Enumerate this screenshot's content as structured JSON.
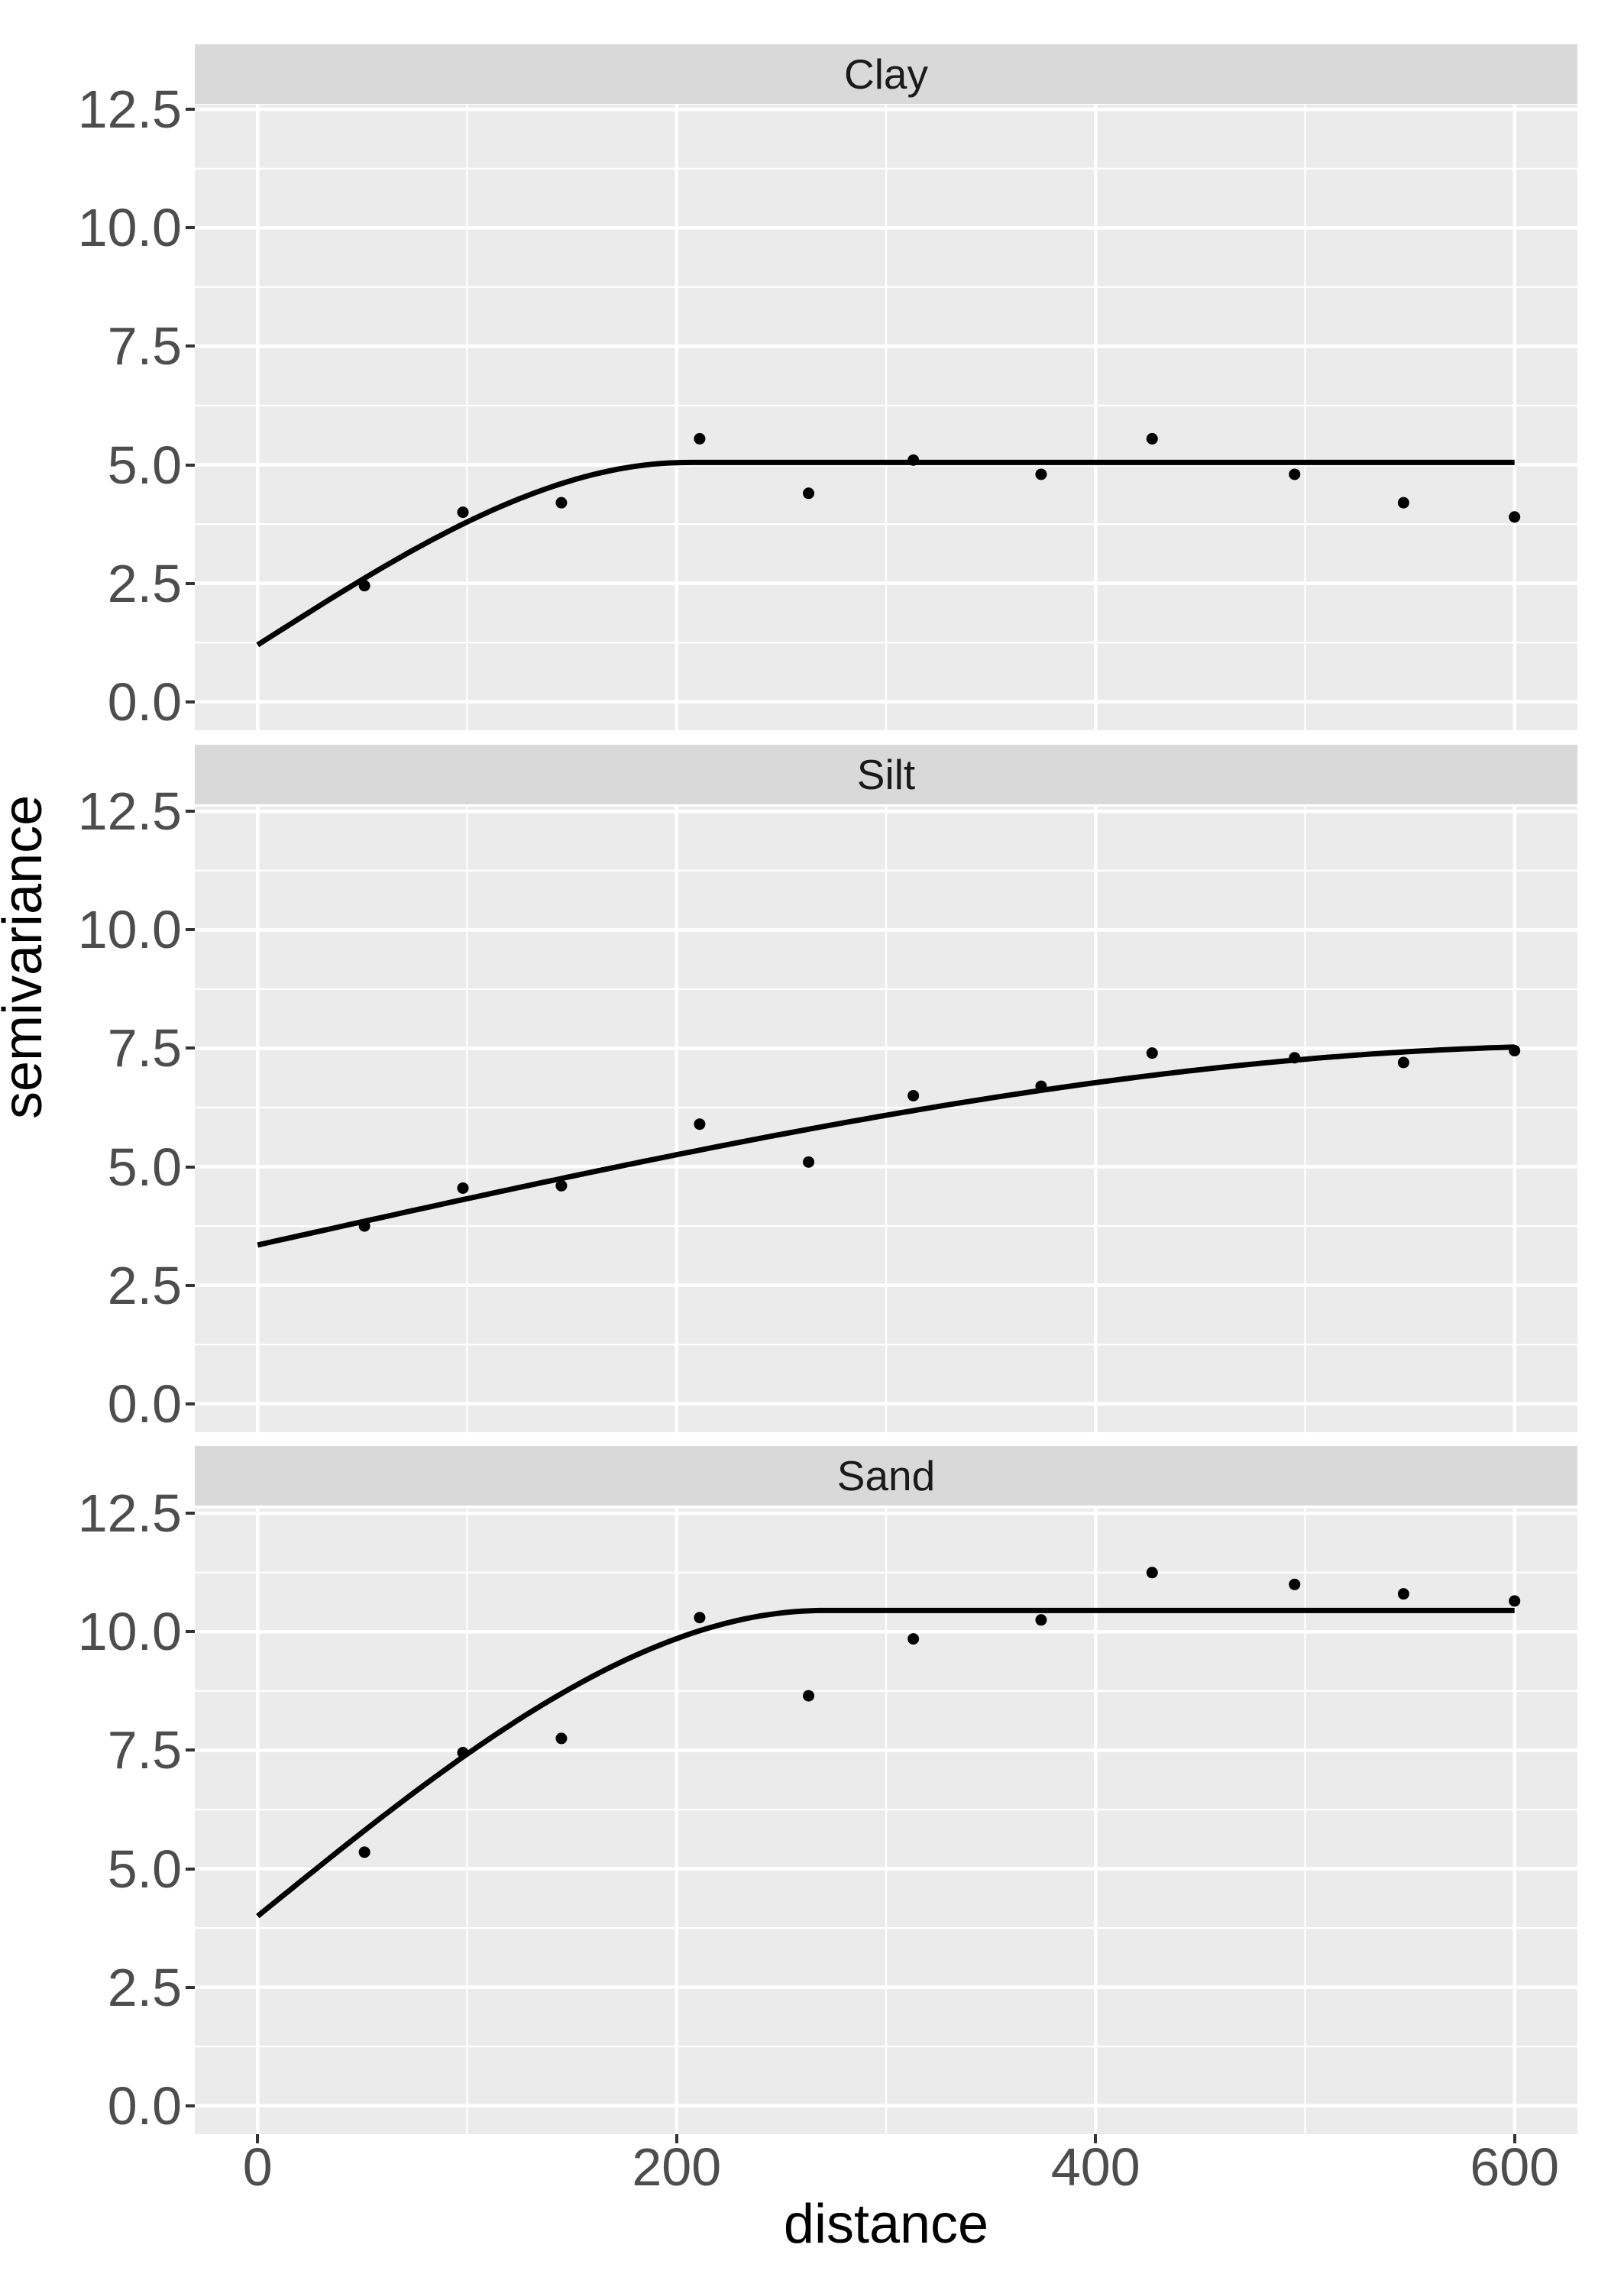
{
  "chart_data": {
    "type": "scatter",
    "description": "Faceted empirical variogram with fitted spherical models, ggplot2 theme_gray style, three vertically stacked facets sharing axes",
    "xlabel": "distance",
    "ylabel": "semivariance",
    "xlim": [
      -30,
      630
    ],
    "ylim": [
      -0.6,
      12.6
    ],
    "x_breaks": [
      0,
      200,
      400,
      600
    ],
    "x_break_labels": [
      "0",
      "200",
      "400",
      "600"
    ],
    "x_minor_breaks": [
      100,
      300,
      500
    ],
    "y_breaks": [
      0,
      2.5,
      5,
      7.5,
      10,
      12.5
    ],
    "y_break_labels": [
      "0.0",
      "2.5",
      "5.0",
      "7.5",
      "10.0",
      "12.5"
    ],
    "y_minor_breaks": [
      1.25,
      3.75,
      6.25,
      8.75,
      11.25
    ],
    "grid": "on",
    "legend_position": "none",
    "x": [
      51,
      98,
      145,
      211,
      263,
      313,
      374,
      427,
      495,
      547,
      600
    ],
    "facets": [
      {
        "name": "Clay",
        "points_y": [
          2.45,
          4.0,
          4.2,
          5.55,
          4.4,
          5.1,
          4.8,
          5.55,
          4.8,
          4.2,
          3.9
        ],
        "fit_model": {
          "type": "spherical",
          "nugget": 1.2,
          "psill": 3.85,
          "range": 205,
          "sill": 5.05,
          "line_x_start": 0,
          "line_x_end": 600
        }
      },
      {
        "name": "Silt",
        "points_y": [
          3.75,
          4.55,
          4.6,
          5.9,
          5.1,
          6.5,
          6.7,
          7.4,
          7.3,
          7.2,
          7.45
        ],
        "fit_model": {
          "type": "spherical",
          "nugget": 3.35,
          "psill": 4.2,
          "range": 640,
          "sill": 7.55,
          "line_x_start": 0,
          "line_x_end": 600
        }
      },
      {
        "name": "Sand",
        "points_y": [
          5.35,
          7.45,
          7.75,
          10.3,
          8.65,
          9.85,
          10.25,
          11.25,
          11.0,
          10.8,
          10.65
        ],
        "fit_model": {
          "type": "spherical",
          "nugget": 4.0,
          "psill": 6.45,
          "range": 270,
          "sill": 10.45,
          "line_x_start": 0,
          "line_x_end": 600
        }
      }
    ]
  },
  "axes": {
    "x_title": "distance",
    "y_title": "semivariance"
  },
  "style": {
    "panel_background": "#EBEBEB",
    "strip_background": "#D9D9D9",
    "gridline_color": "#FFFFFF",
    "point_color": "#000000",
    "fit_line_color": "#000000",
    "tick_mark_color": "#333333",
    "tick_label_color": "#4D4D4D",
    "axis_title_color": "#000000",
    "strip_text_color": "#1A1A1A",
    "figure_background": "#FFFFFF"
  }
}
